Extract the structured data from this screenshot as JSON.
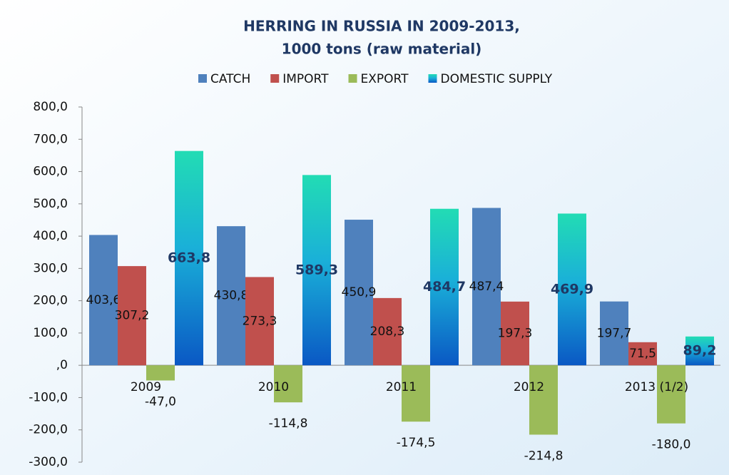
{
  "chart_data": {
    "type": "bar",
    "title": [
      "HERRING IN RUSSIA IN 2009-2013,",
      "1000 tons (raw material)"
    ],
    "categories": [
      "2009",
      "2010",
      "2011",
      "2012",
      "2013 (1/2)"
    ],
    "series": [
      {
        "name": "CATCH",
        "color": "#4f81bd",
        "values": [
          403.6,
          430.8,
          450.9,
          487.4,
          197.7
        ],
        "value_labels": [
          "403,6",
          "430,8",
          "450,9",
          "487,4",
          "197,7"
        ]
      },
      {
        "name": "IMPORT",
        "color": "#c0504d",
        "values": [
          307.2,
          273.3,
          208.3,
          197.3,
          71.5
        ],
        "value_labels": [
          "307,2",
          "273,3",
          "208,3",
          "197,3",
          "71,5"
        ]
      },
      {
        "name": "EXPORT",
        "color": "#9bbb59",
        "values": [
          -47.0,
          -114.8,
          -174.5,
          -214.8,
          -180.0
        ],
        "value_labels": [
          "-47,0",
          "-114,8",
          "-174,5",
          "-214,8",
          "-180,0"
        ]
      },
      {
        "name": "DOMESTIC SUPPLY",
        "color": "#1ab0d8",
        "values": [
          663.8,
          589.3,
          484.7,
          469.9,
          89.2
        ],
        "value_labels": [
          "663,8",
          "589,3",
          "484,7",
          "469,9",
          "89,2"
        ]
      }
    ],
    "ylim": [
      -300,
      800
    ],
    "yticks": [
      {
        "value": -300,
        "label": "-300,0"
      },
      {
        "value": -200,
        "label": "-200,0"
      },
      {
        "value": -100,
        "label": "-100,0"
      },
      {
        "value": 0,
        "label": ",0"
      },
      {
        "value": 100,
        "label": "100,0"
      },
      {
        "value": 200,
        "label": "200,0"
      },
      {
        "value": 300,
        "label": "300,0"
      },
      {
        "value": 400,
        "label": "400,0"
      },
      {
        "value": 500,
        "label": "500,0"
      },
      {
        "value": 600,
        "label": "600,0"
      },
      {
        "value": 700,
        "label": "700,0"
      },
      {
        "value": 800,
        "label": "800,0"
      }
    ],
    "legend": "top"
  }
}
